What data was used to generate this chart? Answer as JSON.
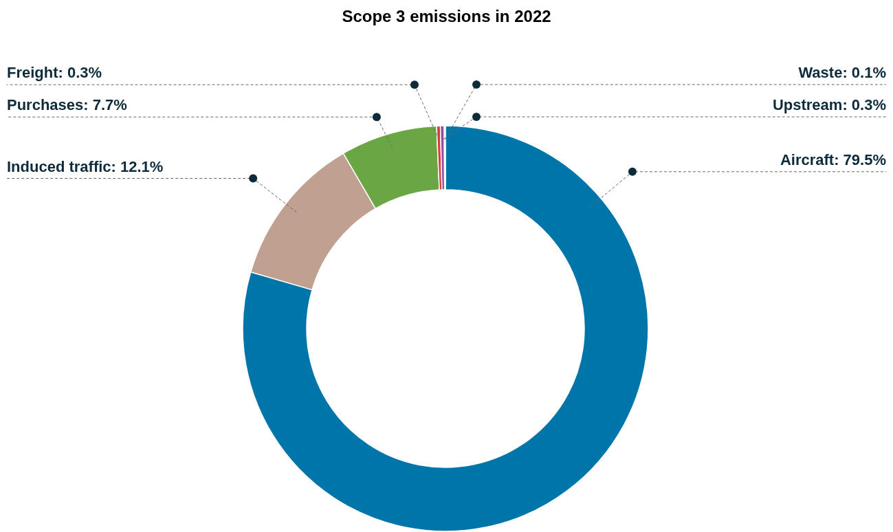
{
  "chart_data": {
    "type": "donut",
    "title": "Scope 3 emissions in 2022",
    "categories": [
      "Aircraft",
      "Induced traffic",
      "Purchases",
      "Freight",
      "Upstream",
      "Waste"
    ],
    "values": [
      79.5,
      12.1,
      7.7,
      0.3,
      0.3,
      0.1
    ],
    "colors": [
      "#0075aa",
      "#c0a090",
      "#6aa744",
      "#e03a3e",
      "#8e4fa0",
      "#f0964a"
    ],
    "value_labels": [
      "79.5%",
      "12.1%",
      "7.7%",
      "0.3%",
      "0.3%",
      "0.1%"
    ]
  }
}
